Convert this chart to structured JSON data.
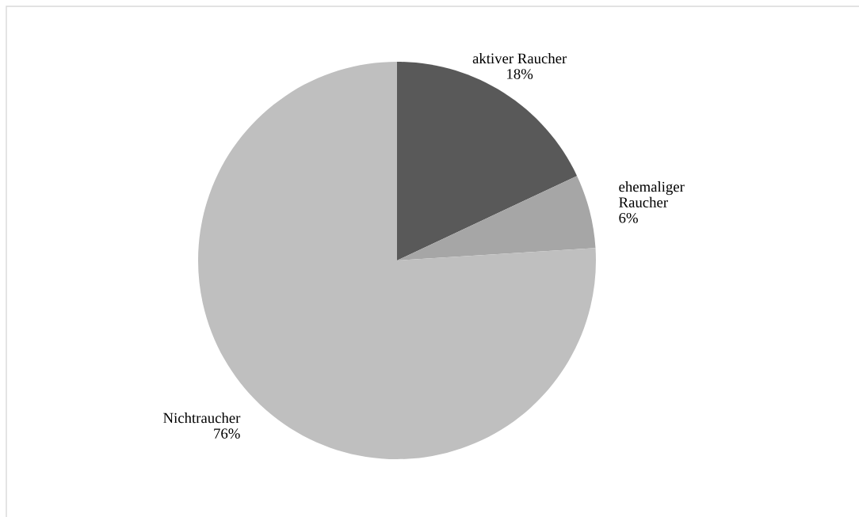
{
  "chart_data": {
    "type": "pie",
    "categories": [
      "aktiver Raucher",
      "ehemaliger\nRaucher",
      "Nichtraucher"
    ],
    "values": [
      18,
      6,
      76
    ],
    "value_labels": [
      "18%",
      "6%",
      "76%"
    ],
    "colors": [
      "#595959",
      "#a6a6a6",
      "#bfbfbf"
    ],
    "legend": false
  }
}
